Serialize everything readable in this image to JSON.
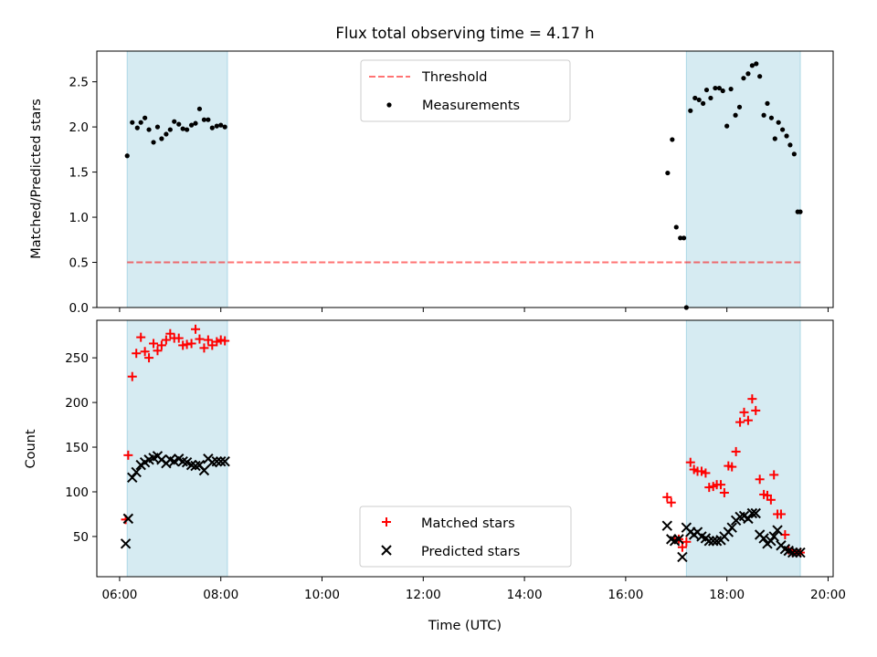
{
  "chart_data": {
    "type": "scatter",
    "title": "Flux total observing time = 4.17 h",
    "xlabel": "Time (UTC)",
    "x_ticks": [
      "06:00",
      "08:00",
      "10:00",
      "12:00",
      "14:00",
      "16:00",
      "18:00",
      "20:00"
    ],
    "xlim": [
      5.55,
      20.1
    ],
    "shaded_intervals": [
      [
        6.15,
        8.13
      ],
      [
        17.2,
        19.45
      ]
    ],
    "shade_color": "#add8e6",
    "top": {
      "ylabel": "Matched/Predicted stars",
      "ylim": [
        0,
        2.84
      ],
      "y_ticks": [
        "0.0",
        "0.5",
        "1.0",
        "1.5",
        "2.0",
        "2.5"
      ],
      "threshold": {
        "name": "Threshold",
        "value": 0.5,
        "color": "#ff0000"
      },
      "measurements": {
        "name": "Measurements",
        "color": "#000000",
        "x": [
          6.15,
          6.25,
          6.35,
          6.42,
          6.5,
          6.58,
          6.67,
          6.75,
          6.83,
          6.92,
          7.0,
          7.08,
          7.17,
          7.25,
          7.33,
          7.42,
          7.5,
          7.58,
          7.67,
          7.75,
          7.83,
          7.92,
          8.0,
          8.08,
          16.83,
          16.92,
          17.0,
          17.08,
          17.15,
          17.2,
          17.28,
          17.37,
          17.45,
          17.53,
          17.6,
          17.68,
          17.77,
          17.85,
          17.92,
          18.0,
          18.08,
          18.17,
          18.25,
          18.33,
          18.42,
          18.5,
          18.58,
          18.65,
          18.73,
          18.8,
          18.88,
          18.95,
          19.02,
          19.1,
          19.18,
          19.25,
          19.33,
          19.4,
          19.45
        ],
        "y": [
          1.68,
          2.05,
          1.99,
          2.05,
          2.1,
          1.97,
          1.83,
          2.0,
          1.87,
          1.92,
          1.97,
          2.06,
          2.03,
          1.98,
          1.97,
          2.02,
          2.04,
          2.2,
          2.08,
          2.08,
          1.99,
          2.01,
          2.02,
          2.0,
          1.49,
          1.86,
          0.89,
          0.77,
          0.77,
          0.0,
          2.18,
          2.32,
          2.3,
          2.26,
          2.41,
          2.32,
          2.43,
          2.43,
          2.4,
          2.01,
          2.42,
          2.13,
          2.22,
          2.54,
          2.59,
          2.68,
          2.7,
          2.56,
          2.13,
          2.26,
          2.1,
          1.87,
          2.05,
          1.97,
          1.9,
          1.8,
          1.7,
          1.06,
          1.06
        ]
      }
    },
    "bottom": {
      "ylabel": "Count",
      "ylim": [
        5,
        292
      ],
      "y_ticks": [
        "50",
        "100",
        "150",
        "200",
        "250"
      ],
      "series": [
        {
          "name": "Matched stars",
          "marker": "plus",
          "color": "#ff0000",
          "x": [
            6.12,
            6.17,
            6.25,
            6.33,
            6.42,
            6.5,
            6.58,
            6.67,
            6.75,
            6.83,
            6.92,
            7.0,
            7.08,
            7.17,
            7.25,
            7.33,
            7.42,
            7.5,
            7.58,
            7.67,
            7.75,
            7.83,
            7.92,
            8.0,
            8.08,
            16.82,
            16.9,
            16.97,
            17.05,
            17.12,
            17.2,
            17.28,
            17.35,
            17.42,
            17.5,
            17.58,
            17.65,
            17.73,
            17.8,
            17.88,
            17.95,
            18.03,
            18.1,
            18.18,
            18.26,
            18.34,
            18.42,
            18.5,
            18.57,
            18.65,
            18.73,
            18.8,
            18.87,
            18.93,
            19.0,
            19.07,
            19.15,
            19.22,
            19.3,
            19.38,
            19.45
          ],
          "y": [
            69,
            141,
            229,
            255,
            273,
            257,
            250,
            266,
            258,
            264,
            270,
            277,
            272,
            272,
            264,
            265,
            266,
            282,
            271,
            261,
            270,
            264,
            268,
            270,
            269,
            94,
            88,
            47,
            47,
            38,
            44,
            133,
            125,
            123,
            123,
            121,
            105,
            106,
            108,
            108,
            99,
            129,
            128,
            145,
            178,
            189,
            180,
            204,
            191,
            114,
            97,
            96,
            91,
            119,
            75,
            75,
            52,
            35,
            32,
            32,
            32
          ]
        },
        {
          "name": "Predicted stars",
          "marker": "x",
          "color": "#000000",
          "x": [
            6.12,
            6.17,
            6.25,
            6.33,
            6.42,
            6.5,
            6.58,
            6.67,
            6.75,
            6.83,
            6.92,
            7.0,
            7.08,
            7.17,
            7.25,
            7.33,
            7.42,
            7.5,
            7.58,
            7.67,
            7.75,
            7.83,
            7.92,
            8.0,
            8.08,
            16.82,
            16.9,
            16.97,
            17.05,
            17.12,
            17.2,
            17.28,
            17.35,
            17.42,
            17.5,
            17.58,
            17.65,
            17.73,
            17.8,
            17.88,
            17.95,
            18.03,
            18.1,
            18.18,
            18.26,
            18.34,
            18.42,
            18.5,
            18.57,
            18.65,
            18.73,
            18.8,
            18.87,
            18.93,
            19.0,
            19.07,
            19.15,
            19.22,
            19.3,
            19.38,
            19.45
          ],
          "y": [
            42,
            70,
            116,
            122,
            130,
            133,
            136,
            138,
            140,
            136,
            132,
            136,
            134,
            137,
            134,
            133,
            130,
            129,
            130,
            124,
            137,
            133,
            134,
            134,
            134,
            62,
            47,
            45,
            47,
            27,
            60,
            55,
            52,
            55,
            50,
            48,
            45,
            45,
            45,
            46,
            50,
            55,
            60,
            68,
            72,
            73,
            70,
            76,
            76,
            52,
            48,
            42,
            45,
            50,
            57,
            40,
            36,
            34,
            32,
            32,
            32
          ]
        }
      ]
    }
  }
}
